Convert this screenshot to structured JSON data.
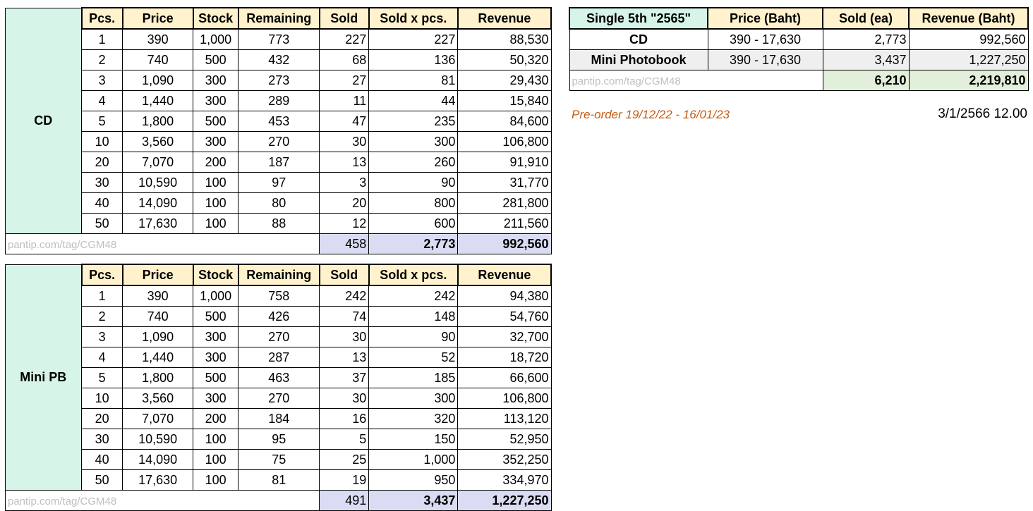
{
  "watermark": "pantip.com/tag/CGM48",
  "left_tables": [
    {
      "label": "CD",
      "headers": [
        "Pcs.",
        "Price",
        "Stock",
        "Remaining",
        "Sold",
        "Sold x pcs.",
        "Revenue"
      ],
      "rows": [
        [
          "1",
          "390",
          "1,000",
          "773",
          "227",
          "227",
          "88,530"
        ],
        [
          "2",
          "740",
          "500",
          "432",
          "68",
          "136",
          "50,320"
        ],
        [
          "3",
          "1,090",
          "300",
          "273",
          "27",
          "81",
          "29,430"
        ],
        [
          "4",
          "1,440",
          "300",
          "289",
          "11",
          "44",
          "15,840"
        ],
        [
          "5",
          "1,800",
          "500",
          "453",
          "47",
          "235",
          "84,600"
        ],
        [
          "10",
          "3,560",
          "300",
          "270",
          "30",
          "300",
          "106,800"
        ],
        [
          "20",
          "7,070",
          "200",
          "187",
          "13",
          "260",
          "91,910"
        ],
        [
          "30",
          "10,590",
          "100",
          "97",
          "3",
          "90",
          "31,770"
        ],
        [
          "40",
          "14,090",
          "100",
          "80",
          "20",
          "800",
          "281,800"
        ],
        [
          "50",
          "17,630",
          "100",
          "88",
          "12",
          "600",
          "211,560"
        ]
      ],
      "totals": [
        "458",
        "2,773",
        "992,560"
      ]
    },
    {
      "label": "Mini PB",
      "headers": [
        "Pcs.",
        "Price",
        "Stock",
        "Remaining",
        "Sold",
        "Sold x pcs.",
        "Revenue"
      ],
      "rows": [
        [
          "1",
          "390",
          "1,000",
          "758",
          "242",
          "242",
          "94,380"
        ],
        [
          "2",
          "740",
          "500",
          "426",
          "74",
          "148",
          "54,760"
        ],
        [
          "3",
          "1,090",
          "300",
          "270",
          "30",
          "90",
          "32,700"
        ],
        [
          "4",
          "1,440",
          "300",
          "287",
          "13",
          "52",
          "18,720"
        ],
        [
          "5",
          "1,800",
          "500",
          "463",
          "37",
          "185",
          "66,600"
        ],
        [
          "10",
          "3,560",
          "300",
          "270",
          "30",
          "300",
          "106,800"
        ],
        [
          "20",
          "7,070",
          "200",
          "184",
          "16",
          "320",
          "113,120"
        ],
        [
          "30",
          "10,590",
          "100",
          "95",
          "5",
          "150",
          "52,950"
        ],
        [
          "40",
          "14,090",
          "100",
          "75",
          "25",
          "1,000",
          "352,250"
        ],
        [
          "50",
          "17,630",
          "100",
          "81",
          "19",
          "950",
          "334,970"
        ]
      ],
      "totals": [
        "491",
        "3,437",
        "1,227,250"
      ]
    }
  ],
  "summary": {
    "headers": [
      "Single 5th \"2565\"",
      "Price (Baht)",
      "Sold (ea)",
      "Revenue (Baht)"
    ],
    "rows": [
      [
        "CD",
        "390 - 17,630",
        "2,773",
        "992,560"
      ],
      [
        "Mini Photobook",
        "390 - 17,630",
        "3,437",
        "1,227,250"
      ]
    ],
    "totals": [
      "6,210",
      "2,219,810"
    ]
  },
  "notes": {
    "preorder": "Pre-order 19/12/22 - 16/01/23",
    "timestamp": "3/1/2566 12.00"
  },
  "colors": {
    "header_fill": "#FFF2CC",
    "label_fill": "#D6F5E8",
    "total_fill": "#D9DCF2",
    "summary_total_fill": "#E2EFDA",
    "alt_row_fill": "#EFEFEF",
    "watermark_text": "#BFBFBF",
    "preorder_text": "#C55A11"
  }
}
